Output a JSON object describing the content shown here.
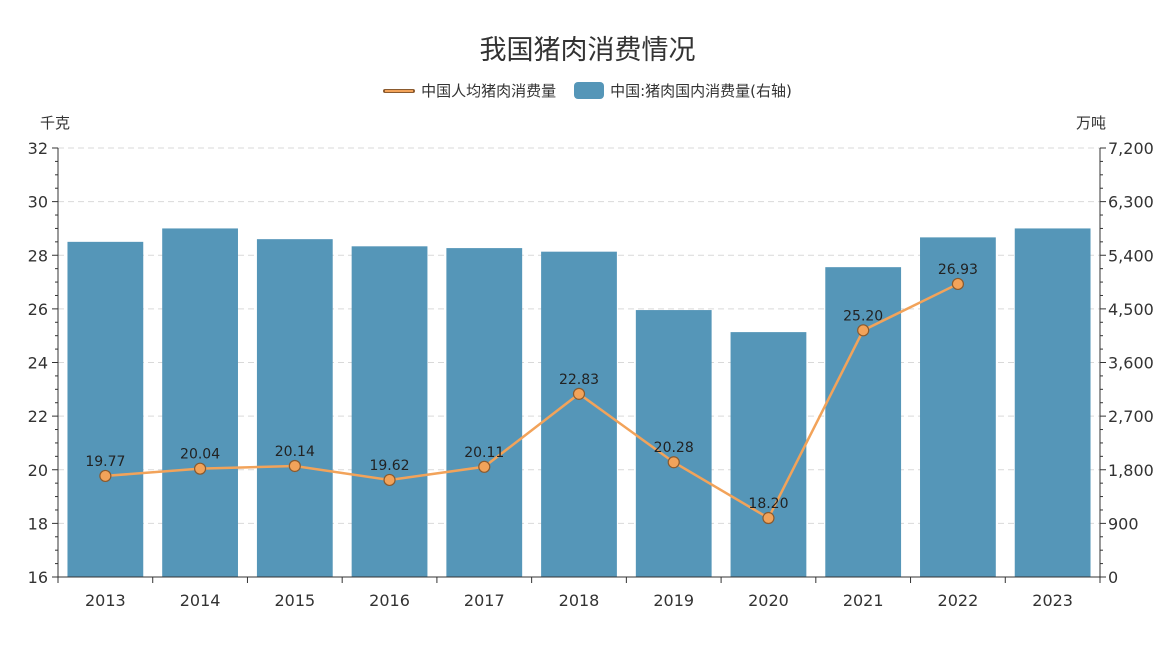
{
  "chart_data": {
    "type": "bar",
    "title": "我国猪肉消费情况",
    "categories": [
      "2013",
      "2014",
      "2015",
      "2016",
      "2017",
      "2018",
      "2019",
      "2020",
      "2021",
      "2022",
      "2023"
    ],
    "series": [
      {
        "name": "中国人均猪肉消费量",
        "type": "line",
        "axis": "left",
        "values": [
          19.77,
          20.04,
          20.14,
          19.62,
          20.11,
          22.83,
          20.28,
          18.2,
          25.2,
          26.93,
          null
        ],
        "labels": [
          "19.77",
          "20.04",
          "20.14",
          "19.62",
          "20.11",
          "22.83",
          "20.28",
          "18.20",
          "25.20",
          "26.93",
          ""
        ]
      },
      {
        "name": "中国:猪肉国内消费量(右轴)",
        "type": "bar",
        "axis": "right",
        "values": [
          5625,
          5850,
          5670,
          5550,
          5520,
          5460,
          4480,
          4110,
          5200,
          5700,
          5850
        ]
      }
    ],
    "y_left": {
      "unit": "千克",
      "min": 16,
      "max": 32,
      "ticks": [
        "16",
        "18",
        "20",
        "22",
        "24",
        "26",
        "28",
        "30",
        "32"
      ],
      "tick_values": [
        16,
        18,
        20,
        22,
        24,
        26,
        28,
        30,
        32
      ]
    },
    "y_right": {
      "unit": "万吨",
      "min": 0,
      "max": 7200,
      "ticks": [
        "0",
        "900",
        "1,800",
        "2,700",
        "3,600",
        "4,500",
        "5,400",
        "6,300",
        "7,200"
      ],
      "tick_values": [
        0,
        900,
        1800,
        2700,
        3600,
        4500,
        5400,
        6300,
        7200
      ]
    },
    "grid": true,
    "legend_position": "top-center"
  },
  "colors": {
    "bar": "#5596b8",
    "line": "#f2a35a",
    "marker_stroke": "#8a5a2e",
    "grid": "#d9d9d9",
    "axis": "#333333"
  }
}
